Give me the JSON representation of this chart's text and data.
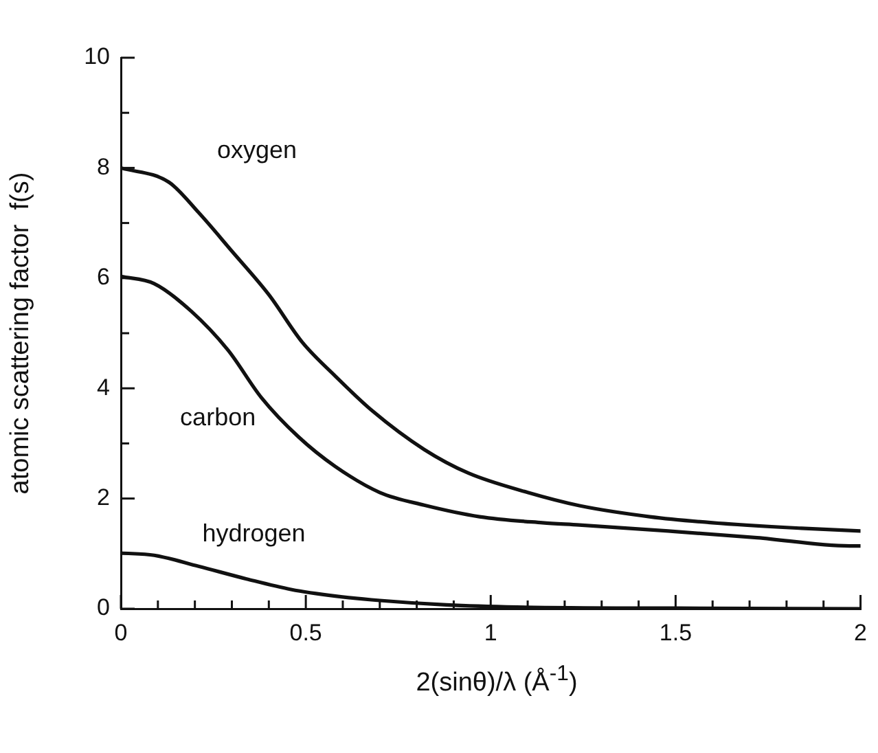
{
  "chart_data": {
    "type": "line",
    "xlabel": "2(sinθ)/λ  (Å$^{-1}$)",
    "ylabel": "atomic scattering factor  f(s)",
    "xlim": [
      0,
      2
    ],
    "ylim": [
      0,
      10
    ],
    "xticks": [
      0,
      {
        "value": 0.1,
        "label": null
      },
      {
        "value": 0.2,
        "label": null
      },
      {
        "value": 0.3,
        "label": null
      },
      {
        "value": 0.4,
        "label": null
      },
      0.5,
      {
        "value": 0.6,
        "label": null
      },
      {
        "value": 0.7,
        "label": null
      },
      {
        "value": 0.8,
        "label": null
      },
      {
        "value": 0.9,
        "label": null
      },
      1,
      {
        "value": 1.1,
        "label": null
      },
      {
        "value": 1.2,
        "label": null
      },
      {
        "value": 1.3,
        "label": null
      },
      {
        "value": 1.4,
        "label": null
      },
      1.5,
      {
        "value": 1.6,
        "label": null
      },
      {
        "value": 1.7,
        "label": null
      },
      {
        "value": 1.8,
        "label": null
      },
      {
        "value": 1.9,
        "label": null
      },
      2
    ],
    "yticks": [
      0,
      {
        "value": 1,
        "label": null
      },
      2,
      {
        "value": 3,
        "label": null
      },
      4,
      {
        "value": 5,
        "label": null
      },
      6,
      {
        "value": 7,
        "label": null
      },
      8,
      {
        "value": 9,
        "label": null
      },
      10
    ],
    "grid": false,
    "legend": false,
    "marker": "none",
    "line_style": "solid",
    "series": [
      {
        "name": "oxygen",
        "color": "#111111",
        "x": [
          0,
          0.13,
          0.21,
          0.3,
          0.4,
          0.49,
          0.58,
          0.68,
          0.82,
          0.94,
          1.1,
          1.24,
          1.43,
          1.6,
          1.84,
          2
        ],
        "values": [
          8,
          7.74,
          7.19,
          6.49,
          5.7,
          4.84,
          4.22,
          3.59,
          2.89,
          2.46,
          2.11,
          1.87,
          1.67,
          1.56,
          1.46,
          1.41
        ]
      },
      {
        "name": "carbon",
        "color": "#111111",
        "x": [
          0,
          0.09,
          0.19,
          0.29,
          0.38,
          0.48,
          0.58,
          0.7,
          0.82,
          0.97,
          1.14,
          1.24,
          1.48,
          1.72,
          1.97,
          2
        ],
        "values": [
          6.03,
          5.9,
          5.4,
          4.69,
          3.83,
          3.12,
          2.58,
          2.11,
          1.88,
          1.67,
          1.56,
          1.52,
          1.41,
          1.29,
          1.14,
          1.14
        ]
      },
      {
        "name": "hydrogen",
        "color": "#111111",
        "x": [
          0,
          0.09,
          0.21,
          0.34,
          0.46,
          0.58,
          0.7,
          0.88,
          1.07,
          1.5,
          2
        ],
        "values": [
          1.01,
          0.97,
          0.77,
          0.54,
          0.35,
          0.23,
          0.15,
          0.07,
          0.03,
          0.01,
          0
        ]
      }
    ]
  }
}
